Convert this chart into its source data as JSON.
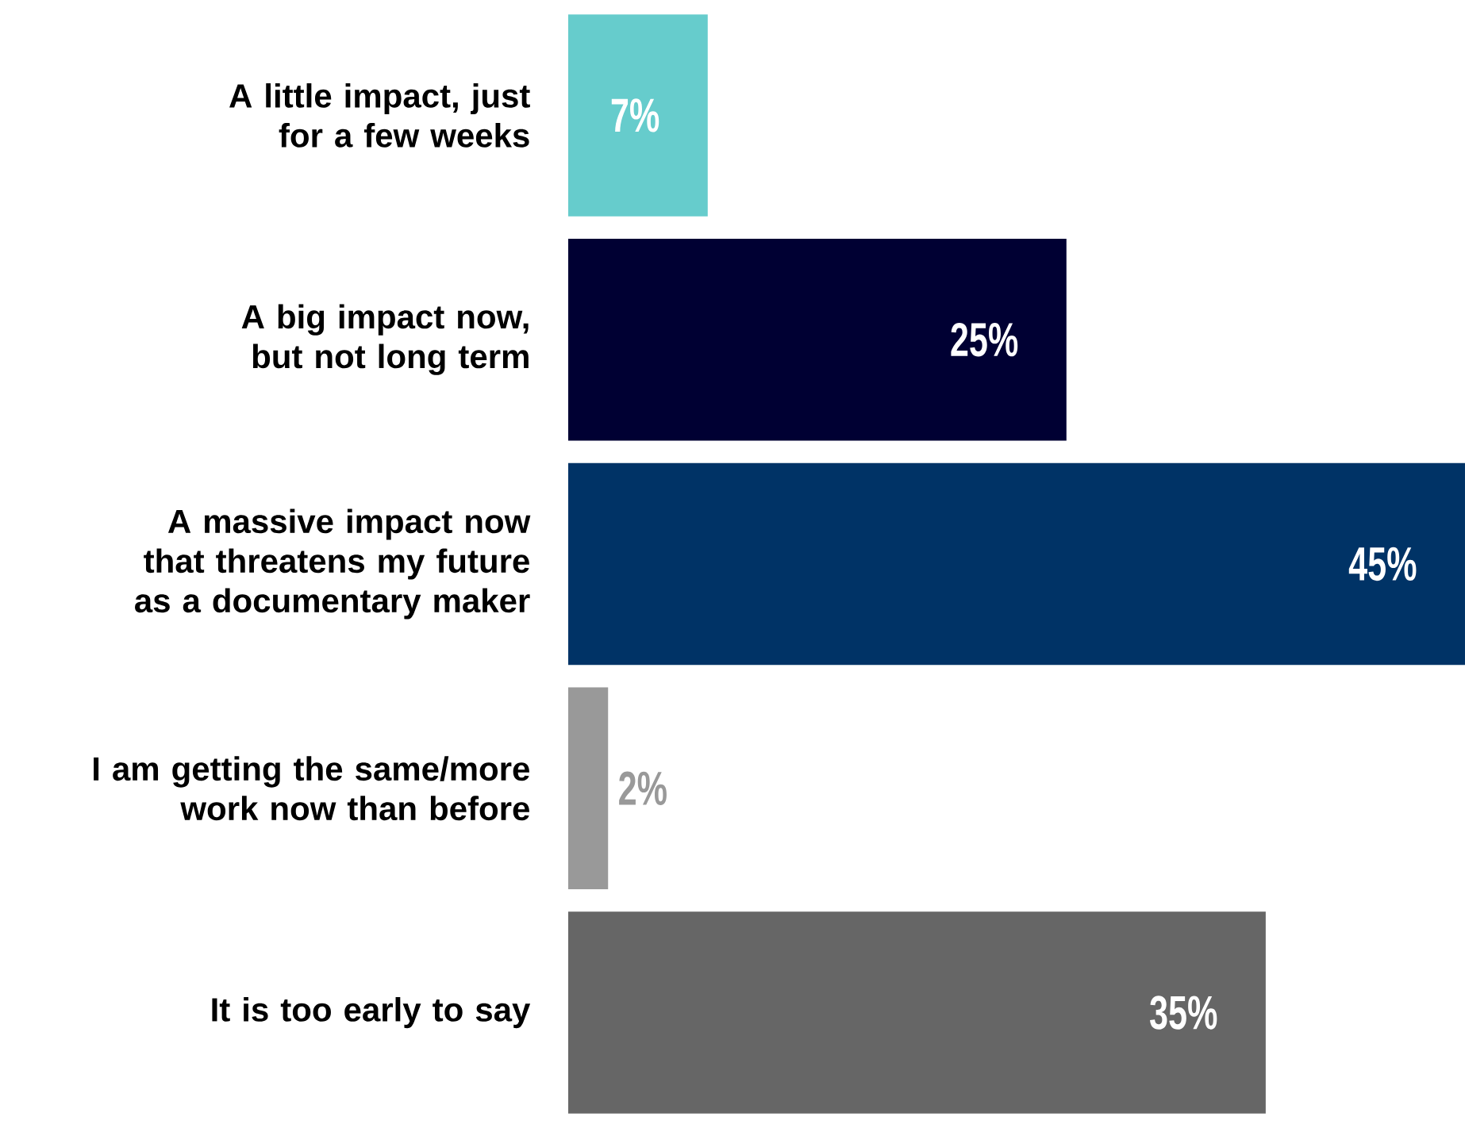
{
  "chart_data": {
    "type": "bar",
    "orientation": "horizontal",
    "categories": [
      "A little impact, just for a few weeks",
      "A big impact now, but not long term",
      "A massive impact now that threatens my future as a documentary maker",
      "I am getting the same/more work now than before",
      "It is too early to say"
    ],
    "values": [
      7,
      25,
      45,
      2,
      35
    ],
    "colors": [
      "#66cccc",
      "#000033",
      "#003366",
      "#999999",
      "#666666"
    ],
    "value_labels": [
      "7%",
      "25%",
      "45%",
      "2%",
      "35%"
    ],
    "tick_labels": "y"
  }
}
